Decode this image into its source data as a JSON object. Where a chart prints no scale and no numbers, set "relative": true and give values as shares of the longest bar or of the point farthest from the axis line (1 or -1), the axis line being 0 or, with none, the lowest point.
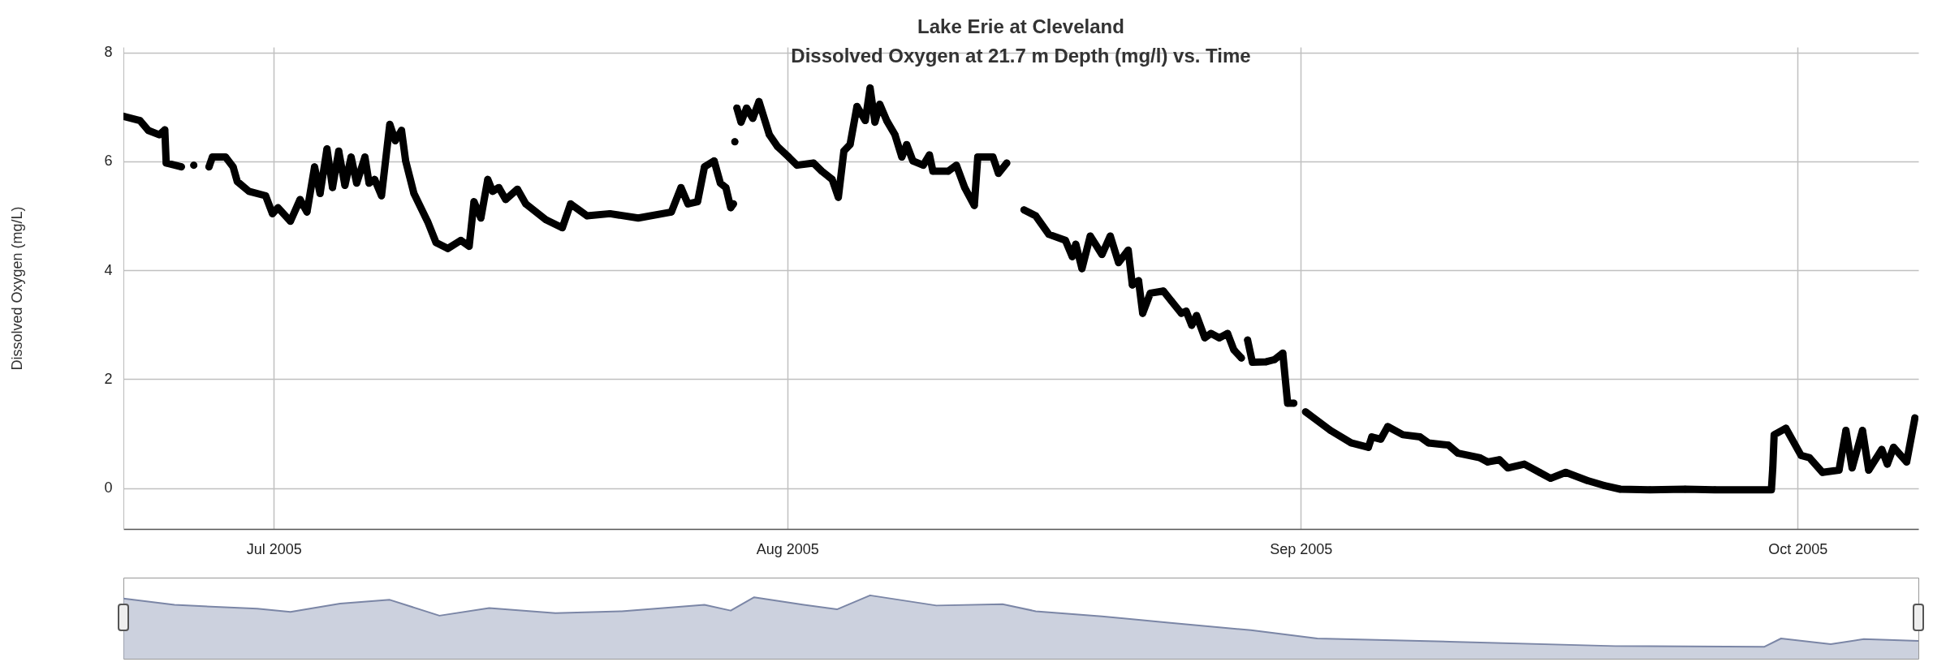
{
  "chart_data": [
    {
      "type": "line",
      "title": "Lake Erie at Cleveland",
      "subtitle": "Dissolved Oxygen at 21.7 m Depth (mg/l) vs. Time",
      "ylabel": "Dissolved Oxygen (mg/L)",
      "xlim": [
        "2005-06-21T22:00",
        "2005-10-08T07:00"
      ],
      "xticks": [
        {
          "value": "2005-07-01",
          "label": "Jul 2005"
        },
        {
          "value": "2005-08-01",
          "label": "Aug 2005"
        },
        {
          "value": "2005-09-01",
          "label": "Sep 2005"
        },
        {
          "value": "2005-10-01",
          "label": "Oct 2005"
        }
      ],
      "ylim": [
        -0.75,
        8.1
      ],
      "yticks": [
        0,
        2,
        4,
        6,
        8
      ],
      "grid": true,
      "marker": "circle",
      "line_style": "solid",
      "series": [
        {
          "color": "#000000",
          "x": [
            "2005-06-21T22:00",
            "2005-06-22T22:00",
            "2005-06-23T10:00",
            "2005-06-24T02:00",
            "2005-06-24T10:00",
            "2005-06-24T12:00",
            "2005-06-25T10:00",
            "2005-06-25T19:00",
            "2005-06-26T04:00",
            "2005-06-26T17:00",
            "2005-06-27T02:00",
            "2005-06-27T07:00",
            "2005-06-28T02:00",
            "2005-06-28T13:00",
            "2005-06-28T19:00",
            "2005-06-29T12:00",
            "2005-06-30T12:00",
            "2005-06-30T22:00",
            "2005-07-01T06:00",
            "2005-07-02T00:00",
            "2005-07-02T14:00",
            "2005-07-03T00:00",
            "2005-07-03T11:00",
            "2005-07-03T19:00",
            "2005-07-04T05:00",
            "2005-07-04T13:00",
            "2005-07-04T22:00",
            "2005-07-05T07:00",
            "2005-07-05T16:00",
            "2005-07-06T00:00",
            "2005-07-06T12:00",
            "2005-07-06T18:00",
            "2005-07-07T02:00",
            "2005-07-07T12:00",
            "2005-07-08T00:00",
            "2005-07-08T08:00",
            "2005-07-08T17:00",
            "2005-07-08T23:00",
            "2005-07-09T11:00",
            "2005-07-10T07:00",
            "2005-07-10T19:00",
            "2005-07-11T12:00",
            "2005-07-12T07:00",
            "2005-07-12T19:00",
            "2005-07-13T02:00",
            "2005-07-13T12:00",
            "2005-07-13T22:00",
            "2005-07-14T05:00",
            "2005-07-14T14:00",
            "2005-07-15T00:00",
            "2005-07-15T17:00",
            "2005-07-16T05:00",
            "2005-07-17T10:00",
            "2005-07-18T10:00",
            "2005-07-18T22:00",
            "2005-07-19T22:00",
            "2005-07-21T07:00",
            "2005-07-23T00:00",
            "2005-07-25T00:00",
            "2005-07-25T14:00",
            "2005-07-26T00:00",
            "2005-07-26T14:00",
            "2005-07-27T00:00",
            "2005-07-27T14:00",
            "2005-07-27T23:00",
            "2005-07-28T07:00",
            "2005-07-28T14:00",
            "2005-07-28T18:00",
            "2005-07-28T19:00",
            "2005-07-28T20:00",
            "2005-07-28T21:00",
            "2005-07-28T23:00",
            "2005-07-29T05:00",
            "2005-07-29T13:00",
            "2005-07-29T22:00",
            "2005-07-30T07:00",
            "2005-07-30T22:00",
            "2005-07-31T10:00",
            "2005-08-01T02:00",
            "2005-08-01T14:00",
            "2005-08-02T14:00",
            "2005-08-03T02:00",
            "2005-08-03T17:00",
            "2005-08-04T02:00",
            "2005-08-04T10:00",
            "2005-08-04T19:00",
            "2005-08-05T05:00",
            "2005-08-05T17:00",
            "2005-08-06T00:00",
            "2005-08-06T07:00",
            "2005-08-06T14:00",
            "2005-08-07T00:00",
            "2005-08-07T12:00",
            "2005-08-07T22:00",
            "2005-08-08T05:00",
            "2005-08-08T14:00",
            "2005-08-09T05:00",
            "2005-08-09T14:00",
            "2005-08-09T19:00",
            "2005-08-10T17:00",
            "2005-08-11T05:00",
            "2005-08-11T17:00",
            "2005-08-12T07:00",
            "2005-08-12T12:00",
            "2005-08-13T10:00",
            "2005-08-13T18:00",
            "2005-08-14T06:00",
            "2005-08-14T18:00",
            "2005-08-15T07:00",
            "2005-08-16T00:00",
            "2005-08-16T19:00",
            "2005-08-17T19:00",
            "2005-08-18T05:00",
            "2005-08-18T10:00",
            "2005-08-18T19:00",
            "2005-08-19T07:00",
            "2005-08-20T00:00",
            "2005-08-20T12:00",
            "2005-08-21T00:00",
            "2005-08-21T14:00",
            "2005-08-21T20:00",
            "2005-08-22T05:00",
            "2005-08-22T11:00",
            "2005-08-22T22:00",
            "2005-08-23T17:00",
            "2005-08-24T05:00",
            "2005-08-24T19:00",
            "2005-08-25T02:00",
            "2005-08-25T10:00",
            "2005-08-25T17:00",
            "2005-08-26T05:00",
            "2005-08-26T14:00",
            "2005-08-27T02:00",
            "2005-08-27T14:00",
            "2005-08-27T23:00",
            "2005-08-28T10:00",
            "2005-08-28T14:00",
            "2005-08-28T19:00",
            "2005-08-29T02:00",
            "2005-08-29T22:00",
            "2005-08-30T10:00",
            "2005-08-30T22:00",
            "2005-08-31T05:00",
            "2005-08-31T14:00",
            "2005-08-31T22:00",
            "2005-09-01T07:00",
            "2005-09-02T19:00",
            "2005-09-04T01:00",
            "2005-09-05T02:00",
            "2005-09-05T07:00",
            "2005-09-05T20:00",
            "2005-09-06T06:00",
            "2005-09-07T04:00",
            "2005-09-08T05:00",
            "2005-09-08T17:00",
            "2005-09-09T22:00",
            "2005-09-10T12:00",
            "2005-09-11T19:00",
            "2005-09-12T07:00",
            "2005-09-13T00:00",
            "2005-09-13T12:00",
            "2005-09-14T12:00",
            "2005-09-15T10:00",
            "2005-09-16T02:00",
            "2005-09-17T00:00",
            "2005-09-18T07:00",
            "2005-09-19T07:00",
            "2005-09-20T07:00",
            "2005-09-22T02:00",
            "2005-09-24T05:00",
            "2005-09-26T00:00",
            "2005-09-29T10:00",
            "2005-09-29T12:00",
            "2005-09-29T14:00",
            "2005-09-30T07:00",
            "2005-10-01T05:00",
            "2005-10-01T17:00",
            "2005-10-02T12:00",
            "2005-10-03T12:00",
            "2005-10-03T22:00",
            "2005-10-04T07:00",
            "2005-10-04T22:00",
            "2005-10-05T07:00",
            "2005-10-06T02:00",
            "2005-10-06T10:00",
            "2005-10-06T19:00",
            "2005-10-07T14:00",
            "2005-10-08T02:00"
          ],
          "values": [
            6.83,
            6.75,
            6.57,
            6.49,
            6.58,
            5.97,
            5.9,
            null,
            5.93,
            null,
            5.9,
            6.08,
            6.08,
            5.9,
            5.63,
            5.45,
            5.37,
            5.04,
            5.15,
            4.9,
            5.3,
            5.07,
            5.9,
            5.41,
            6.23,
            5.52,
            6.19,
            5.56,
            6.08,
            5.6,
            6.08,
            5.6,
            5.67,
            5.37,
            6.68,
            6.38,
            6.57,
            6.01,
            5.41,
            4.89,
            4.51,
            4.4,
            4.55,
            4.44,
            5.26,
            4.96,
            5.67,
            5.45,
            5.52,
            5.3,
            5.49,
            5.22,
            4.93,
            4.78,
            5.22,
            5.0,
            5.04,
            4.96,
            5.07,
            5.52,
            5.22,
            5.26,
            5.9,
            6.01,
            5.6,
            5.52,
            5.15,
            5.22,
            null,
            6.36,
            null,
            6.98,
            6.72,
            6.98,
            6.79,
            7.1,
            6.49,
            6.27,
            6.08,
            5.93,
            5.97,
            5.82,
            5.67,
            5.34,
            6.19,
            6.31,
            7.01,
            6.75,
            7.35,
            6.72,
            7.05,
            6.75,
            6.49,
            6.08,
            6.31,
            6.01,
            5.93,
            6.12,
            5.82,
            5.82,
            5.93,
            5.52,
            5.19,
            6.08,
            6.08,
            5.78,
            5.97,
            null,
            5.11,
            5.0,
            4.66,
            4.55,
            4.25,
            4.48,
            4.03,
            4.63,
            4.29,
            4.63,
            4.14,
            4.37,
            3.73,
            3.81,
            3.21,
            3.58,
            3.62,
            3.43,
            3.21,
            3.25,
            2.99,
            3.17,
            2.76,
            2.84,
            2.76,
            2.84,
            2.54,
            2.39,
            null,
            2.72,
            2.31,
            2.32,
            2.36,
            2.48,
            1.56,
            1.56,
            null,
            1.4,
            1.06,
            0.83,
            0.75,
            0.94,
            0.9,
            1.13,
            0.98,
            0.94,
            0.83,
            0.79,
            0.64,
            0.56,
            0.48,
            0.52,
            0.37,
            0.44,
            0.29,
            0.18,
            0.29,
            0.14,
            0.05,
            -0.02,
            -0.03,
            -0.02,
            -0.03,
            -0.03,
            0.37,
            0.98,
            1.1,
            0.6,
            0.56,
            0.29,
            0.33,
            1.06,
            0.37,
            1.06,
            0.33,
            0.71,
            0.44,
            0.75,
            0.48,
            1.29
          ]
        }
      ]
    },
    {
      "type": "area",
      "relative": true,
      "tick_labels": false,
      "color": "#a3abc2",
      "xlim": [
        "2005-06-21T22:00",
        "2005-10-08T07:00"
      ],
      "x": [
        "2005-06-21T22:00",
        "2005-06-25T00:00",
        "2005-06-30T00:00",
        "2005-07-02T00:00",
        "2005-07-05T00:00",
        "2005-07-08T00:00",
        "2005-07-11T00:00",
        "2005-07-14T00:00",
        "2005-07-18T00:00",
        "2005-07-22T00:00",
        "2005-07-27T00:00",
        "2005-07-28T14:00",
        "2005-07-30T00:00",
        "2005-08-02T00:00",
        "2005-08-04T00:00",
        "2005-08-06T00:00",
        "2005-08-10T00:00",
        "2005-08-14T00:00",
        "2005-08-16T00:00",
        "2005-08-20T00:00",
        "2005-08-24T00:00",
        "2005-08-29T00:00",
        "2005-09-02T00:00",
        "2005-09-10T00:00",
        "2005-09-20T00:00",
        "2005-09-29T00:00",
        "2005-09-30T00:00",
        "2005-10-03T00:00",
        "2005-10-05T00:00",
        "2005-10-08T07:00"
      ],
      "values": [
        0.95,
        0.85,
        0.79,
        0.74,
        0.87,
        0.93,
        0.68,
        0.8,
        0.72,
        0.75,
        0.85,
        0.76,
        0.97,
        0.85,
        0.78,
        1,
        0.84,
        0.86,
        0.75,
        0.67,
        0.57,
        0.45,
        0.32,
        0.27,
        0.2,
        0.19,
        0.32,
        0.23,
        0.31,
        0.28
      ]
    }
  ]
}
